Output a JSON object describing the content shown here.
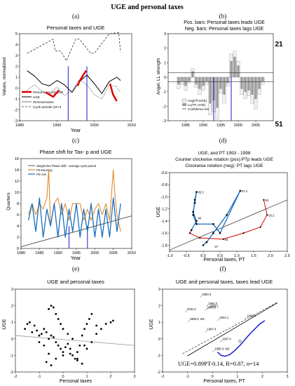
{
  "figure": {
    "title": "UGE and personal taxes"
  },
  "panels": {
    "a": {
      "letter": "(a)",
      "title": "Personal taxes and UGE",
      "ylabel": "Values, normalized",
      "xlabel": "Year",
      "legend": [
        "Period taxes led UGE",
        "UGE",
        "Personal taxes",
        "Cycle periods (10+3"
      ]
    },
    "b": {
      "letter": "(b)",
      "title1": "Pos. bars: Personal taxes leads UGE",
      "title2": "Neg. bars: Personal taxes lags UGE",
      "ylabel": "Angel, LL strength",
      "count_top": "21",
      "count_bottom": "51",
      "legend": [
        "Ang(TP,UGE)",
        "LL(TP, UGE)",
        "Confidence interval"
      ]
    },
    "c": {
      "letter": "(c)",
      "title": "Phase shift for Tax- p and UGE",
      "ylabel": "Quarters",
      "xlabel": "Year",
      "legend": [
        "Stieght line Phase shift - average cycle period",
        "PS-Running",
        "PS-Ave"
      ]
    },
    "d": {
      "letter": "(d)",
      "title1": "UGE, and PT 1993 - 1998",
      "title2": "Counter clockwise rotation (pos):PTp leads UGE",
      "title3": "Clockwise rotation (neg): PT lags UGE",
      "ylabel": "UGE",
      "xlabel": "Personal taxes, PT",
      "point_labels": [
        "97.4",
        "95.3",
        "93",
        "93.2",
        "94",
        "97",
        "96"
      ]
    },
    "e": {
      "letter": "(e)",
      "title": "UGE and personal taxes",
      "ylabel": "UGE",
      "xlabel": "Personal taxes"
    },
    "f": {
      "letter": "(f)",
      "title": "UGE and personal taxes, taxes lead UGE",
      "ylabel": "UGE",
      "xlabel": "Personal taxes, PT",
      "point_labels": [
        "2000:3",
        "2006:3",
        "2001:2",
        "1984:3",
        "1985:1",
        "2001:1",
        "1998:4",
        "1986:2: W1",
        "1987:4",
        "1997:4",
        "1995:3: W2"
      ],
      "equation": "UGE=0.89PT-0.14, R=0.87, n=14"
    }
  },
  "chart_data": [
    {
      "panel": "a",
      "type": "line",
      "title": "Personal taxes and UGE",
      "xlabel": "Year",
      "ylabel": "Values, normalized",
      "xlim": [
        1980,
        2010
      ],
      "ylim": [
        -3,
        5
      ],
      "xticks": [
        1980,
        1990,
        2000,
        2010
      ],
      "yticks": [
        -3,
        -2,
        -1,
        0,
        1,
        2,
        3,
        4,
        5
      ],
      "series": [
        {
          "name": "UGE",
          "color": "#000000",
          "x": [
            1982,
            1984,
            1986,
            1988,
            1990,
            1992,
            1994,
            1996,
            1998,
            2000,
            2002,
            2004,
            2006,
            2007
          ],
          "y": [
            1.6,
            1.1,
            0.4,
            0.2,
            0.7,
            0.3,
            -0.4,
            0.6,
            1.2,
            0.4,
            -0.5,
            0.6,
            1.0,
            0.7
          ]
        },
        {
          "name": "Personal taxes",
          "color": "#555555",
          "x": [
            1982,
            1984,
            1986,
            1988,
            1990,
            1992,
            1994,
            1996,
            1998,
            2000,
            2002,
            2004,
            2006,
            2007
          ],
          "y": [
            -0.2,
            0.3,
            -0.3,
            -0.6,
            0.1,
            -0.7,
            -0.2,
            0.8,
            0.3,
            -0.6,
            -1.0,
            0.3,
            0.1,
            -0.4
          ]
        },
        {
          "name": "Cycle periods (10+3",
          "color": "#333333",
          "x": [
            1982,
            1989,
            1989.5,
            1991,
            1992.5,
            1995,
            1996,
            1999,
            2000,
            2004,
            2006.5,
            2007
          ],
          "y": [
            3.2,
            4.5,
            3.4,
            3.4,
            2.5,
            4.5,
            4.5,
            3.2,
            3.2,
            5.0,
            5.1,
            3.3
          ]
        },
        {
          "name": "Period taxes led UGE",
          "color": "#dd0000",
          "x": [
            1987,
            1988,
            1989,
            1990.5,
            1995.5,
            1996,
            1997,
            1997.8,
            2004.2,
            2005,
            2006
          ],
          "y": [
            -0.4,
            -0.6,
            -0.8,
            -0.2,
            0.2,
            0.6,
            1.2,
            1.6,
            0.4,
            -0.6,
            -1.2
          ]
        }
      ],
      "vlines": [
        1993,
        1998
      ]
    },
    {
      "panel": "b",
      "type": "bar",
      "ylabel": "Angel, LL strength",
      "xlim": [
        1980,
        2010
      ],
      "ylim": [
        -3,
        3
      ],
      "xticks": [
        1985,
        1990,
        1995,
        2000,
        2005
      ],
      "yticks": [
        -3,
        -2,
        -1,
        0,
        1,
        2,
        3
      ],
      "x": [
        1983,
        1984,
        1985,
        1986,
        1987,
        1988,
        1989,
        1990,
        1991,
        1992,
        1993,
        1994,
        1995,
        1996,
        1997,
        1998,
        1999,
        2000,
        2001,
        2002,
        2003,
        2004,
        2005,
        2006,
        2007
      ],
      "series": [
        {
          "name": "Ang(TP,UGE)",
          "color": "#f0f0f0",
          "values": [
            -0.8,
            -0.5,
            -0.9,
            -0.4,
            0.6,
            -0.7,
            -1.2,
            -0.9,
            -0.5,
            -2.6,
            -2.4,
            -2.9,
            -1.1,
            -1.8,
            -0.6,
            1.6,
            1.8,
            1.1,
            -1.2,
            -1.5,
            -1.3,
            -1.8,
            -2.2,
            -1.2,
            -0.5
          ]
        },
        {
          "name": "LL(TP, UGE)",
          "color": "#9a9a9a",
          "values": [
            -0.5,
            -0.3,
            -0.6,
            -0.3,
            0.4,
            -0.5,
            -0.8,
            -0.6,
            -0.3,
            -1.8,
            -1.6,
            -2.1,
            -0.8,
            -1.2,
            -0.4,
            1.1,
            1.4,
            0.8,
            -0.8,
            -1.0,
            -0.9,
            -1.2,
            -1.5,
            -0.8,
            -0.3
          ]
        }
      ],
      "confidence_interval": 0.3,
      "vlines": [
        1993,
        1998
      ]
    },
    {
      "panel": "c",
      "type": "line",
      "title": "Phase shift for Tax- p and UGE",
      "xlabel": "Year",
      "ylabel": "Quarters",
      "xlim": [
        1980,
        2010
      ],
      "ylim": [
        0,
        16
      ],
      "xticks": [
        1980,
        1985,
        1990,
        1995,
        2000,
        2005,
        2010
      ],
      "yticks": [
        0,
        2,
        4,
        6,
        8,
        10,
        12,
        14,
        16
      ],
      "series": [
        {
          "name": "Stieght line Phase shift - average cycle period",
          "color": "#333333",
          "x": [
            1980,
            2010
          ],
          "y": [
            0.3,
            5.8
          ]
        },
        {
          "name": "PS-Running",
          "color": "#e08a2a",
          "x": [
            1982,
            1983,
            1984,
            1985,
            1986,
            1987,
            1987.5,
            1988,
            1989,
            1990,
            1991,
            1992,
            1993,
            1994,
            1995,
            1996,
            1997,
            1998,
            1999,
            2000,
            2001,
            2002,
            2003,
            2004,
            2005,
            2005.5,
            2006,
            2007
          ],
          "y": [
            6,
            8,
            6,
            8,
            7,
            9,
            14,
            4,
            8,
            9,
            6,
            8,
            5,
            8,
            8,
            8,
            5,
            7,
            5,
            7,
            8,
            6,
            8,
            5,
            14,
            9,
            6,
            3
          ]
        },
        {
          "name": "PS-Ave",
          "color": "#1a6fbf",
          "x": [
            1982,
            1983,
            1984,
            1985,
            1986,
            1987,
            1988,
            1989,
            1990,
            1991,
            1992,
            1993,
            1994,
            1995,
            1996,
            1997,
            1998,
            1999,
            2000,
            2001,
            2002,
            2003,
            2004,
            2005,
            2006,
            2007
          ],
          "y": [
            5,
            8,
            3,
            9,
            2,
            7,
            4,
            8,
            2,
            8,
            2,
            7,
            3,
            8,
            2,
            7,
            3,
            8,
            2,
            7,
            2,
            7,
            2,
            9,
            3,
            8
          ]
        }
      ],
      "vlines": [
        1993,
        1998
      ]
    },
    {
      "panel": "d",
      "type": "line",
      "xlabel": "Personal taxes, PT",
      "ylabel": "UGE",
      "xlim": [
        -1.0,
        2.5
      ],
      "ylim": [
        -1.9,
        -0.6
      ],
      "xticks": [
        -1.0,
        -0.5,
        0.0,
        0.5,
        1.0,
        1.5,
        2.0,
        2.5
      ],
      "yticks": [
        -1.8,
        -1.6,
        -1.4,
        -1.2,
        -1.0,
        -0.8,
        -0.6
      ],
      "series": [
        {
          "name": "1993-1995",
          "color": "#dd0000",
          "x": [
            1.8,
            1.9,
            1.7,
            1.2,
            0.6,
            -0.1,
            -0.4,
            -0.35
          ],
          "y": [
            -1.05,
            -1.3,
            -1.5,
            -1.6,
            -1.7,
            -1.68,
            -1.6,
            -1.55
          ]
        },
        {
          "name": "1995-1998",
          "color": "#1a6fbf",
          "x": [
            -0.35,
            -0.2,
            -0.3,
            -0.25,
            -0.2,
            -0.25,
            -0.3,
            -0.2,
            0.3,
            0.5,
            1.1,
            0.7,
            0.3,
            0.1,
            0.0
          ],
          "y": [
            -1.55,
            -1.4,
            -1.25,
            -1.1,
            -0.92,
            -1.05,
            -1.3,
            -1.45,
            -1.45,
            -1.6,
            -0.9,
            -1.3,
            -1.6,
            -1.75,
            -1.8
          ]
        },
        {
          "name": "trend",
          "color": "#333333",
          "x": [
            -1.0,
            2.5
          ],
          "y": [
            -1.88,
            -1.05
          ]
        }
      ]
    },
    {
      "panel": "e",
      "type": "scatter",
      "title": "UGE and personal taxes",
      "xlabel": "Personal taxes",
      "ylabel": "UGE",
      "xlim": [
        -2,
        3
      ],
      "ylim": [
        -2,
        3
      ],
      "xticks": [
        -2,
        -1,
        0,
        1,
        2,
        3
      ],
      "yticks": [
        -2,
        -1,
        0,
        1,
        2,
        3
      ],
      "x": [
        -1.6,
        -1.5,
        -1.4,
        -1.3,
        -1.2,
        -1.1,
        -1.0,
        -0.9,
        -0.8,
        -0.7,
        -0.6,
        -0.5,
        -0.4,
        -0.3,
        -0.2,
        -0.1,
        0.0,
        0.1,
        0.2,
        0.3,
        0.4,
        0.5,
        0.6,
        0.7,
        0.8,
        0.9,
        1.0,
        1.1,
        1.2,
        1.4,
        1.6,
        1.8,
        2.0,
        2.1,
        -0.6,
        -0.5,
        -0.4,
        -0.3,
        -0.2,
        -0.1,
        0.0,
        0.2,
        0.4,
        -1.0,
        -0.8,
        -0.6,
        0.6,
        0.8,
        1.0,
        1.2,
        1.4,
        -0.7,
        -0.5,
        -0.3,
        0.0,
        0.3,
        0.6,
        0.9
      ],
      "y": [
        0.6,
        0.9,
        1.0,
        0.4,
        0.8,
        0.5,
        0.2,
        0.3,
        0.6,
        0.4,
        0.0,
        0.2,
        0.1,
        -0.2,
        -0.4,
        -0.6,
        -0.8,
        -0.5,
        -0.3,
        -0.6,
        -1.0,
        -1.2,
        -0.8,
        -0.4,
        0.2,
        0.6,
        0.9,
        1.2,
        1.5,
        0.8,
        0.6,
        0.9,
        1.0,
        1.1,
        1.8,
        2.0,
        1.9,
        1.5,
        1.2,
        0.9,
        0.6,
        0.3,
        0.0,
        -0.2,
        -0.4,
        -0.9,
        -1.2,
        -1.5,
        -0.6,
        -0.2,
        0.3,
        -1.4,
        -1.6,
        -1.2,
        -1.0,
        -0.9,
        -1.3,
        -0.4
      ],
      "trend": {
        "x": [
          -2,
          3
        ],
        "y": [
          0.2,
          -0.4
        ]
      }
    },
    {
      "panel": "f",
      "type": "line",
      "title": "UGE and personal taxes, taxes lead UGE",
      "xlabel": "Personal taxes, PT",
      "ylabel": "UGE",
      "xlim": [
        -2,
        3
      ],
      "ylim": [
        -2,
        3
      ],
      "xticks": [
        -2,
        -1,
        0,
        1,
        2,
        3
      ],
      "yticks": [
        -2,
        -1,
        0,
        1,
        2,
        3
      ],
      "series": [
        {
          "name": "curve",
          "color": "#1a1ad0",
          "x": [
            0.2,
            0.35,
            0.5,
            0.7,
            0.9,
            1.1,
            1.3,
            1.5,
            1.7,
            1.9,
            2.1
          ],
          "y": [
            -0.8,
            -1.0,
            -1.05,
            -0.95,
            -0.7,
            -0.4,
            -0.05,
            0.3,
            0.6,
            0.9,
            1.1
          ]
        },
        {
          "name": "fit",
          "color": "#000000",
          "x": [
            -1.0,
            2.6
          ],
          "y": [
            -1.03,
            2.17
          ]
        },
        {
          "name": "diagonal",
          "color": "#000000",
          "x": [
            -1.2,
            2.6
          ],
          "y": [
            -0.9,
            2.2
          ]
        }
      ],
      "points": {
        "x": [
          -0.5,
          -0.3,
          -1.1,
          -0.25,
          -0.2,
          0.2,
          1.3,
          -1.0,
          -0.3,
          0.3,
          0.0
        ],
        "y": [
          2.5,
          1.7,
          1.6,
          1.95,
          1.8,
          1.1,
          1.2,
          1.0,
          0.4,
          -0.2,
          -0.8
        ]
      }
    }
  ]
}
